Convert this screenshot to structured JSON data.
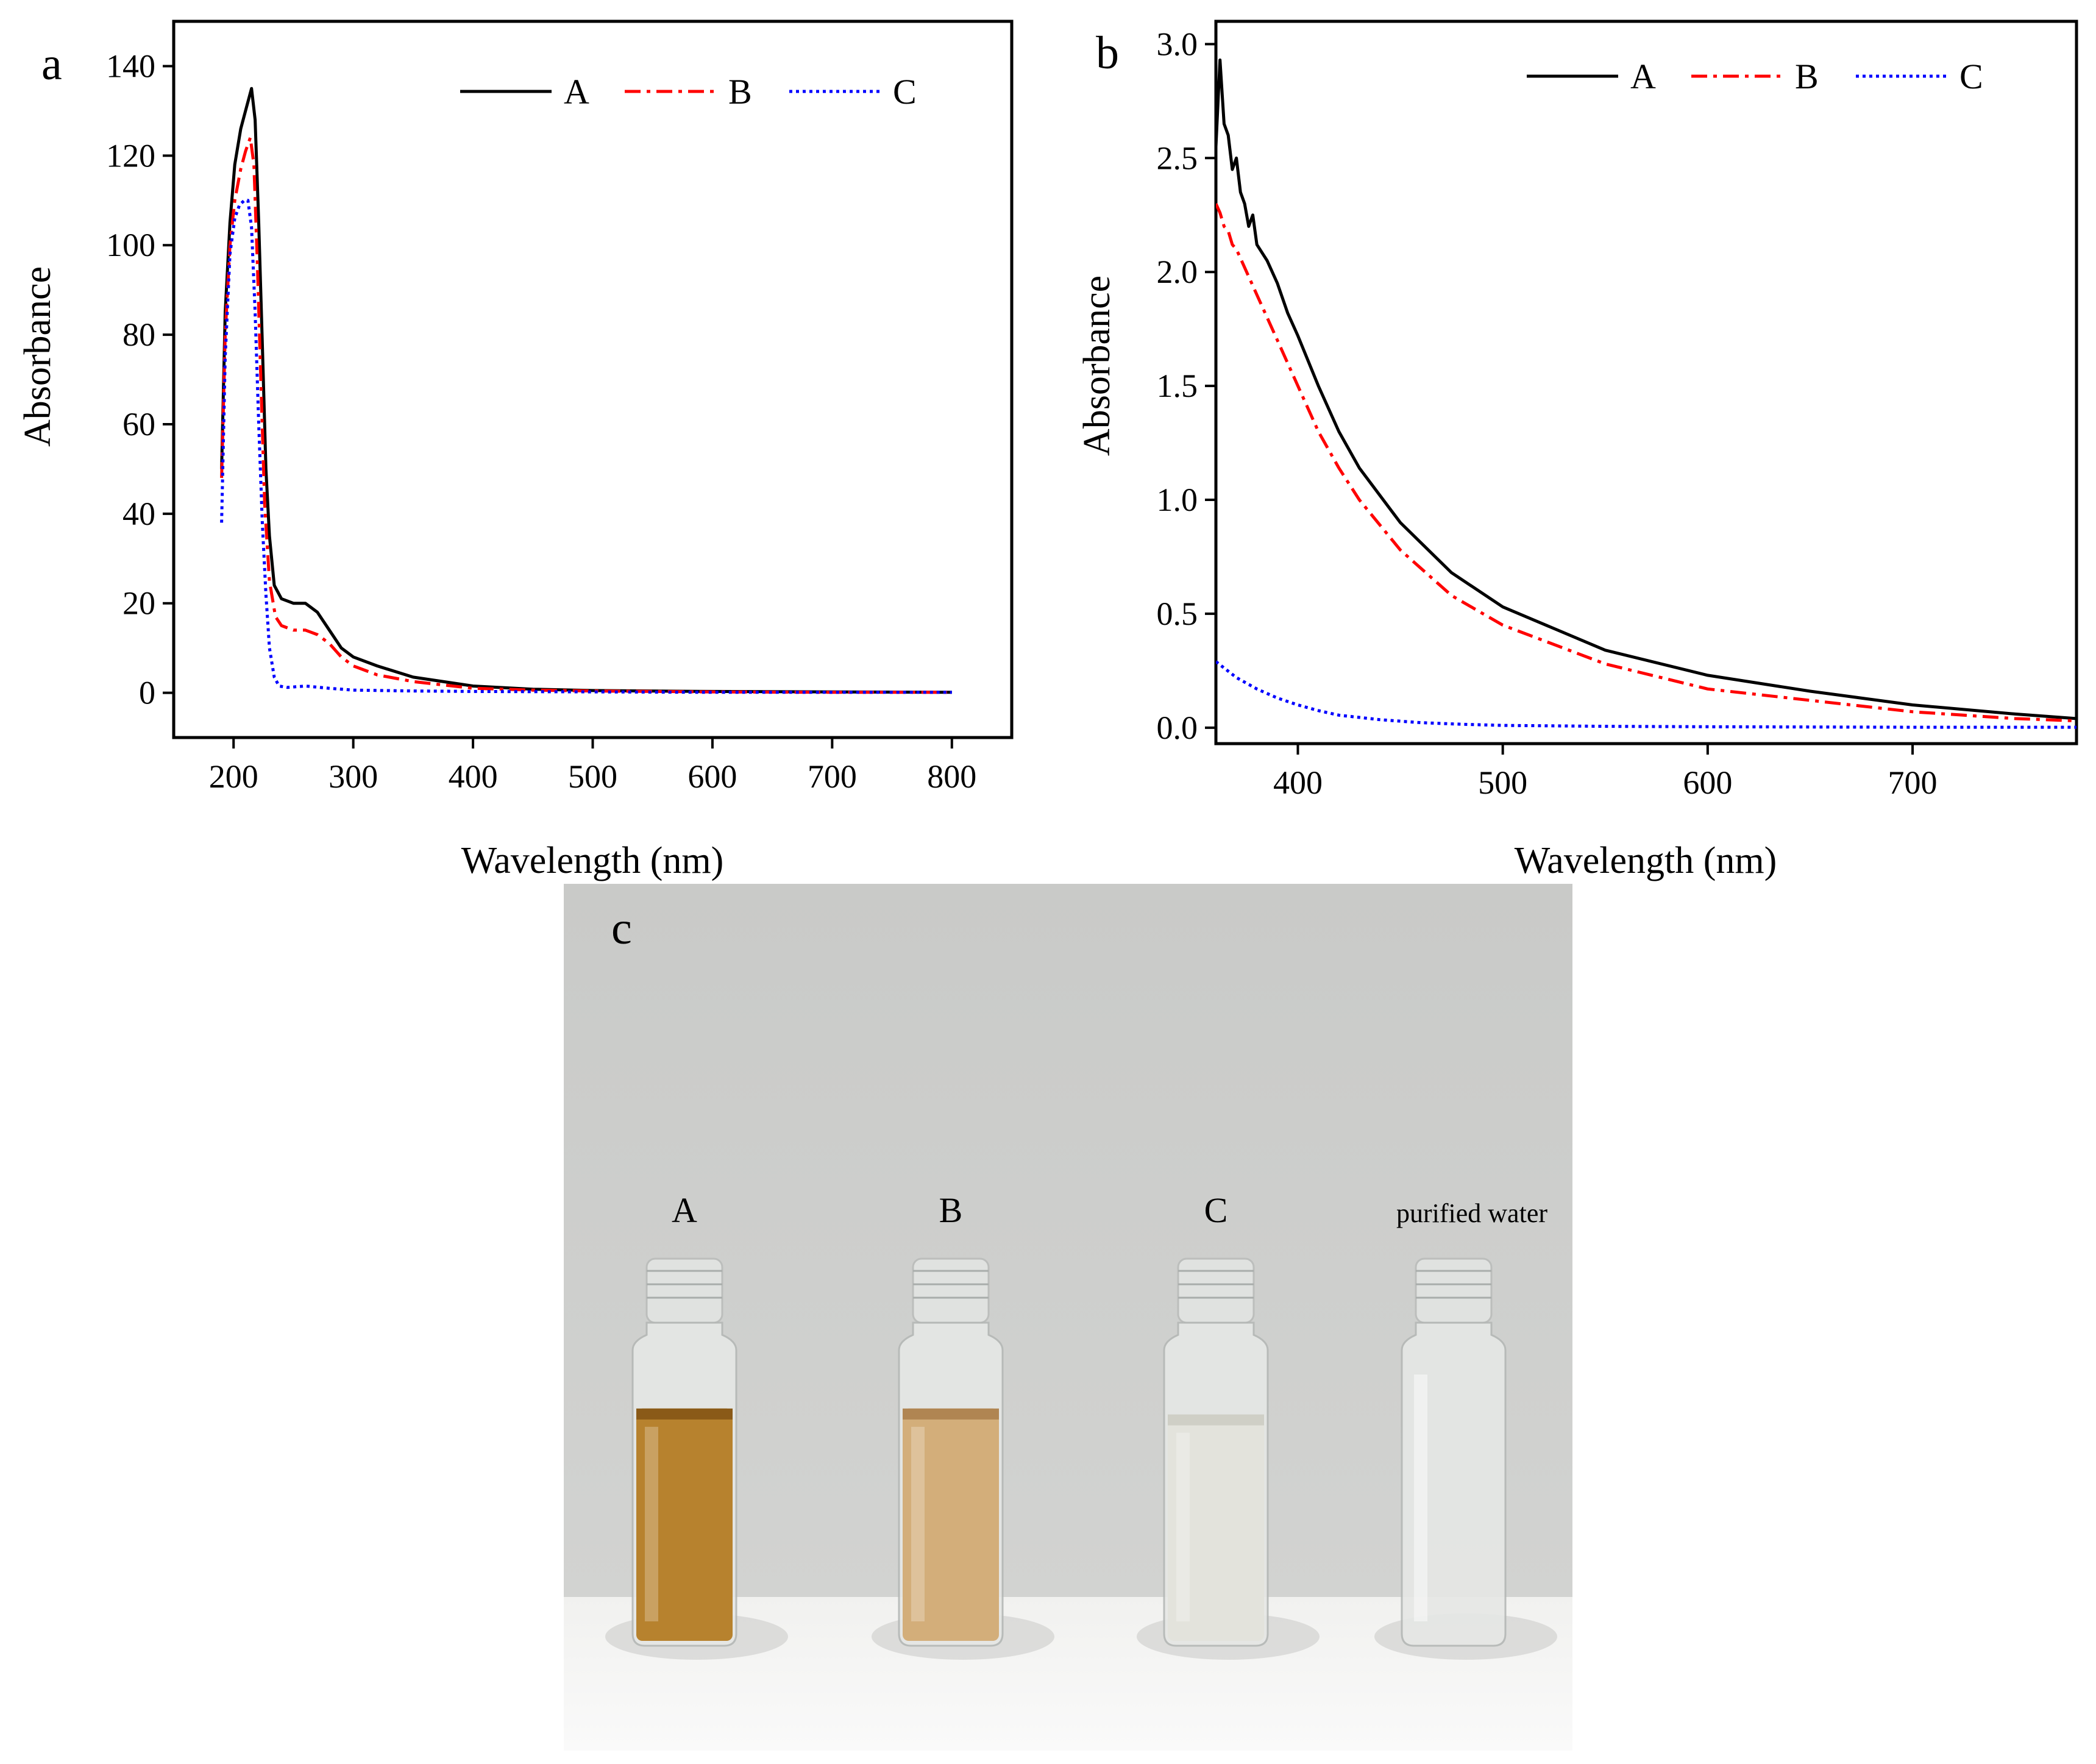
{
  "colors": {
    "A": "#000000",
    "B": "#ff0000",
    "C": "#0000ff"
  },
  "chart_data": [
    {
      "panel": "a",
      "type": "line",
      "xlabel": "Wavelength (nm)",
      "ylabel": "Absorbance",
      "xlim": [
        150,
        850
      ],
      "ylim": [
        -10,
        150
      ],
      "xticks": [
        200,
        300,
        400,
        500,
        600,
        700,
        800
      ],
      "yticks": [
        0,
        20,
        40,
        60,
        80,
        100,
        120,
        140
      ],
      "legend_position": "top-right",
      "series": [
        {
          "name": "A",
          "style": "solid",
          "x": [
            190,
            193,
            197,
            201,
            206,
            211,
            215,
            218,
            221,
            224,
            227,
            230,
            234,
            240,
            250,
            260,
            270,
            280,
            290,
            300,
            320,
            350,
            400,
            450,
            500,
            600,
            700,
            800
          ],
          "y": [
            50,
            85,
            105,
            118,
            126,
            131,
            135,
            128,
            105,
            78,
            50,
            35,
            24,
            21,
            20,
            20,
            18,
            14,
            10,
            8,
            6,
            3.5,
            1.5,
            0.8,
            0.5,
            0.3,
            0.2,
            0.1
          ]
        },
        {
          "name": "B",
          "style": "dashdot",
          "x": [
            190,
            193,
            197,
            201,
            206,
            210,
            214,
            217,
            220,
            223,
            226,
            230,
            235,
            240,
            250,
            260,
            270,
            280,
            290,
            300,
            320,
            350,
            400,
            450,
            500,
            600,
            700,
            800
          ],
          "y": [
            48,
            80,
            100,
            110,
            117,
            121,
            124,
            118,
            95,
            68,
            42,
            25,
            17,
            15,
            14,
            14,
            13,
            11,
            8,
            6,
            4,
            2.5,
            1,
            0.6,
            0.4,
            0.2,
            0.1,
            0.1
          ]
        },
        {
          "name": "C",
          "style": "dotted",
          "x": [
            190,
            193,
            197,
            201,
            205,
            209,
            212,
            215,
            218,
            221,
            224,
            227,
            230,
            234,
            238,
            245,
            260,
            280,
            300,
            350,
            400,
            500,
            600,
            700,
            800
          ],
          "y": [
            38,
            75,
            98,
            106,
            109,
            110,
            110,
            104,
            85,
            60,
            38,
            22,
            10,
            3.5,
            1.5,
            1.2,
            1.5,
            1,
            0.6,
            0.4,
            0.3,
            0.2,
            0.1,
            0.1,
            0.1
          ]
        }
      ]
    },
    {
      "panel": "b",
      "type": "line",
      "xlabel": "Wavelength (nm)",
      "ylabel": "Absorbance",
      "xlim": [
        360,
        780
      ],
      "ylim": [
        -0.07,
        3.1
      ],
      "xticks": [
        400,
        500,
        600,
        700
      ],
      "yticks": [
        "0.0",
        "0.5",
        "1.0",
        "1.5",
        "2.0",
        "2.5",
        "3.0"
      ],
      "legend_position": "top-right",
      "series": [
        {
          "name": "A",
          "style": "solid",
          "x": [
            360,
            362,
            364,
            366,
            368,
            370,
            372,
            374,
            376,
            378,
            380,
            385,
            390,
            395,
            400,
            410,
            420,
            430,
            450,
            475,
            500,
            550,
            600,
            650,
            700,
            750,
            780
          ],
          "y": [
            2.55,
            2.93,
            2.65,
            2.6,
            2.45,
            2.5,
            2.35,
            2.3,
            2.2,
            2.25,
            2.12,
            2.05,
            1.95,
            1.82,
            1.72,
            1.5,
            1.3,
            1.14,
            0.9,
            0.68,
            0.53,
            0.34,
            0.23,
            0.16,
            0.1,
            0.06,
            0.04
          ]
        },
        {
          "name": "B",
          "style": "dashdot",
          "x": [
            360,
            362,
            364,
            366,
            368,
            370,
            375,
            380,
            390,
            400,
            410,
            420,
            430,
            450,
            475,
            500,
            550,
            600,
            650,
            700,
            750,
            780
          ],
          "y": [
            2.3,
            2.26,
            2.2,
            2.18,
            2.12,
            2.1,
            2.0,
            1.9,
            1.7,
            1.5,
            1.3,
            1.14,
            1.0,
            0.78,
            0.58,
            0.45,
            0.28,
            0.17,
            0.12,
            0.07,
            0.04,
            0.03
          ]
        },
        {
          "name": "C",
          "style": "dotted",
          "x": [
            360,
            370,
            380,
            390,
            400,
            410,
            420,
            440,
            460,
            480,
            500,
            550,
            600,
            650,
            700,
            750,
            780
          ],
          "y": [
            0.29,
            0.22,
            0.17,
            0.13,
            0.1,
            0.075,
            0.055,
            0.035,
            0.022,
            0.015,
            0.01,
            0.006,
            0.004,
            0.003,
            0.002,
            0.002,
            0.002
          ]
        }
      ]
    }
  ],
  "panels": {
    "a": "a",
    "b": "b",
    "c": "c"
  },
  "photo": {
    "vials": [
      {
        "label": "A",
        "liquid_color": "#b7822e",
        "liquid_color_dark": "#8a5a18",
        "fill_level": 0.72
      },
      {
        "label": "B",
        "liquid_color": "#d3ae7a",
        "liquid_color_dark": "#b08552",
        "fill_level": 0.72
      },
      {
        "label": "C",
        "liquid_color": "#e3e3dc",
        "liquid_color_dark": "#cfcfc6",
        "fill_level": 0.7
      },
      {
        "label": "purified water",
        "liquid_color": "#dfe1df",
        "liquid_color_dark": "#cdd0cd",
        "fill_level": 0.0
      }
    ]
  }
}
